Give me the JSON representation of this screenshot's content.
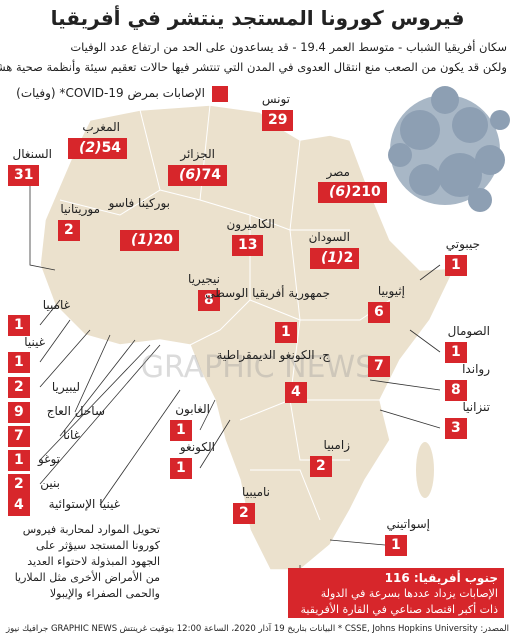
{
  "header": {
    "title": "فيروس كورونا المستجد ينتشر في أفريقيا",
    "subtitle": [
      "سكان أفريقيا الشباب - متوسط العمر 19.4 - قد يساعدون على الحد من ارتفاع عدد الوفيات",
      "ولكن قد يكون من الصعب منع انتقال العدوى في المدن التي تنتشر فيها حالات تعقيم سيئة وأنظمة صحية هشة"
    ]
  },
  "legend": {
    "label": "الإصابات بمرض COVID-19* (وفيات)"
  },
  "countries": [
    {
      "name": "تونس",
      "cases": 29
    },
    {
      "name": "المغرب",
      "cases": 54,
      "deaths": "(2)"
    },
    {
      "name": "الجزائر",
      "cases": 74,
      "deaths": "(6)"
    },
    {
      "name": "مصر",
      "cases": 210,
      "deaths": "(6)"
    },
    {
      "name": "السنغال",
      "cases": 31
    },
    {
      "name": "موريتانيا",
      "cases": 2
    },
    {
      "name": "بوركينا فاسو",
      "cases": 20,
      "deaths": "(1)"
    },
    {
      "name": "الكاميرون",
      "cases": 13
    },
    {
      "name": "السودان",
      "cases": 2,
      "deaths": "(1)"
    },
    {
      "name": "جيبوتي",
      "cases": 1
    },
    {
      "name": "نيجيريا",
      "cases": 8
    },
    {
      "name": "إثيوبيا",
      "cases": 6
    },
    {
      "name": "جمهورية أفريقيا الوسطى",
      "cases": 1
    },
    {
      "name": "غامبيا",
      "cases": 1
    },
    {
      "name": "غينيا",
      "cases": 1
    },
    {
      "name": "ليبيريا",
      "cases": 2
    },
    {
      "name": "الصومال",
      "cases": 1
    },
    {
      "name": "ج. الكونغو الديمقراطية",
      "cases": 4
    },
    {
      "name": null,
      "cases": 7
    },
    {
      "name": "رواندا",
      "cases": 8
    },
    {
      "name": "ساحل العاج",
      "cases": 9
    },
    {
      "name": "غانا",
      "cases": 7
    },
    {
      "name": "تنزانيا",
      "cases": 3
    },
    {
      "name": "الغابون",
      "cases": 1
    },
    {
      "name": "توغو",
      "cases": 1
    },
    {
      "name": "بنين",
      "cases": 2
    },
    {
      "name": "الكونغو",
      "cases": 1
    },
    {
      "name": "زامبيا",
      "cases": 2
    },
    {
      "name": "غينيا الإستوائية",
      "cases": 4
    },
    {
      "name": "ناميبيا",
      "cases": 2
    },
    {
      "name": "إسواتيني",
      "cases": 1
    }
  ],
  "note": [
    "تحويل الموارد لمحاربة فيروس",
    "كورونا المستجد سيؤثر على",
    "الجهود المبذولة لاحتواء العديد",
    "من الأمراض الأخرى مثل الملاريا",
    "والحمى الصفراء والإيبولا"
  ],
  "callout": {
    "title": "جنوب أفريقيا: 116",
    "lines": [
      "الإصابات يزداد عددها بسرعة في الدولة",
      "ذات أكبر اقتصاد صناعي في القارة الأفريقية"
    ]
  },
  "watermark": "GRAPHIC NEWS",
  "footer": {
    "source": "المصدر: CSSE, Johns Hopkins University * البيانات بتاريخ 19 آذار 2020، الساعة 12:00 بتوقيت غرينتش",
    "credit": "GRAPHIC NEWS جرافيك نيوز"
  }
}
